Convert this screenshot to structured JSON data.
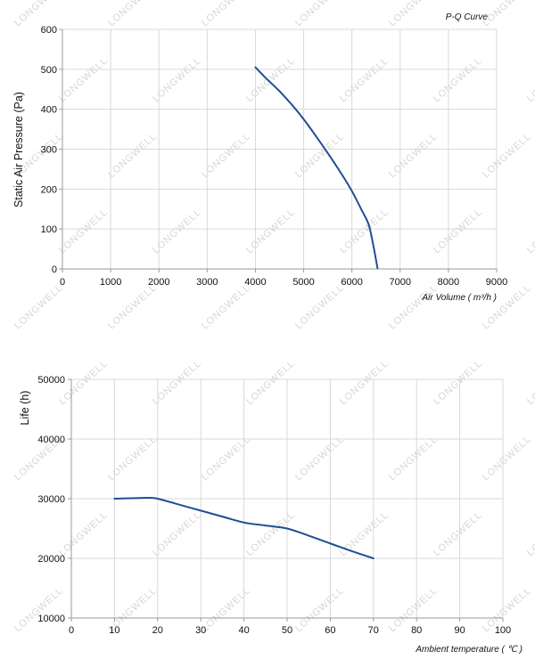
{
  "watermark": "LONGWELL",
  "chart_data": [
    {
      "type": "line",
      "title": "P-Q Curve",
      "xlabel": "Air Volume ( m³/h )",
      "ylabel": "Static Air Pressure  (Pa)",
      "xlim": [
        0,
        9000
      ],
      "ylim": [
        0,
        600
      ],
      "xticks": [
        0,
        1000,
        2000,
        3000,
        4000,
        5000,
        6000,
        7000,
        8000,
        9000
      ],
      "yticks": [
        0,
        100,
        200,
        300,
        400,
        500,
        600
      ],
      "grid": true,
      "color": "#1f4e96",
      "series": [
        {
          "x": [
            4000,
            4200,
            4500,
            4800,
            5000,
            5200,
            5500,
            5800,
            6000,
            6200,
            6350,
            6450,
            6530
          ],
          "y": [
            505,
            480,
            445,
            405,
            375,
            342,
            290,
            235,
            195,
            148,
            110,
            55,
            2
          ]
        }
      ]
    },
    {
      "type": "line",
      "title": "",
      "xlabel": "Ambient temperature ( ℃ )",
      "ylabel": "Life  (h)",
      "xlim": [
        0,
        100
      ],
      "ylim": [
        10000,
        50000
      ],
      "xticks": [
        0,
        10,
        20,
        30,
        40,
        50,
        60,
        70,
        80,
        90,
        100
      ],
      "yticks": [
        10000,
        20000,
        30000,
        40000,
        50000
      ],
      "grid": true,
      "color": "#1f4e96",
      "series": [
        {
          "x": [
            10,
            15,
            18,
            20,
            25,
            30,
            35,
            40,
            45,
            50,
            55,
            60,
            65,
            70
          ],
          "y": [
            30000,
            30100,
            30150,
            30000,
            29000,
            28000,
            27000,
            26000,
            25500,
            25000,
            23800,
            22500,
            21200,
            20000
          ]
        }
      ]
    }
  ]
}
